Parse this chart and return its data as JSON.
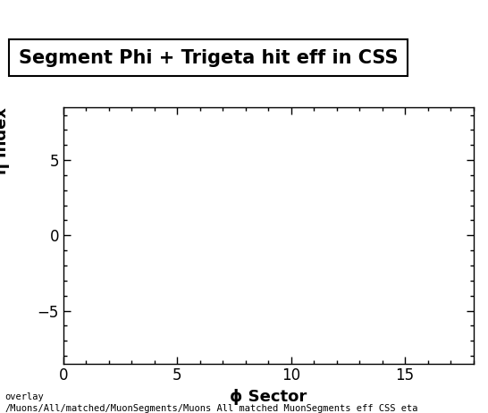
{
  "title": "Segment Phi + Trigeta hit eff in CSS",
  "xlabel": "ϕ Sector",
  "ylabel": "η Index",
  "xlim": [
    0,
    18
  ],
  "ylim": [
    -8.5,
    8.5
  ],
  "xticks": [
    0,
    5,
    10,
    15
  ],
  "yticks": [
    -5,
    0,
    5
  ],
  "footer_line1": "overlay",
  "footer_line2": "/Muons/All/matched/MuonSegments/Muons_All_matched_MuonSegments_eff_CSS_eta",
  "background_color": "#ffffff",
  "title_fontsize": 15,
  "axis_label_fontsize": 13,
  "tick_fontsize": 12,
  "footer_fontsize": 7.5
}
